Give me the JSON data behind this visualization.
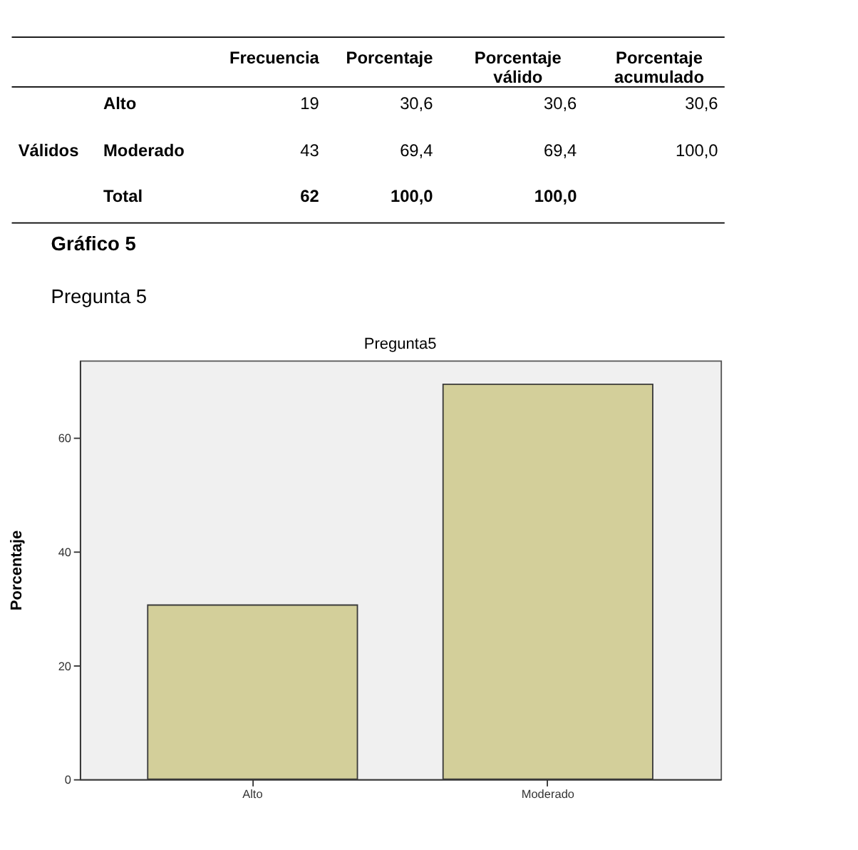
{
  "chart_data": {
    "type": "bar",
    "title": "Pregunta5",
    "ylabel": "Porcentaje",
    "categories": [
      "Alto",
      "Moderado"
    ],
    "values": [
      30.6,
      69.4
    ],
    "color": "#d3cf9a",
    "ylim": [
      0,
      73.6
    ],
    "yticks": [
      0,
      20,
      40,
      60
    ],
    "grid": false,
    "annotations": [
      "Frecuencia",
      "Porcentaje",
      "Porcentaje válido",
      "Porcentaje acumulado",
      "Válidos",
      "Alto",
      "19",
      "30,6",
      "30,6",
      "30,6",
      "Moderado",
      "43",
      "69,4",
      "69,4",
      "100,0",
      "Total",
      "62",
      "100,0",
      "100,0",
      "Gráfico 5",
      "Pregunta 5"
    ]
  }
}
